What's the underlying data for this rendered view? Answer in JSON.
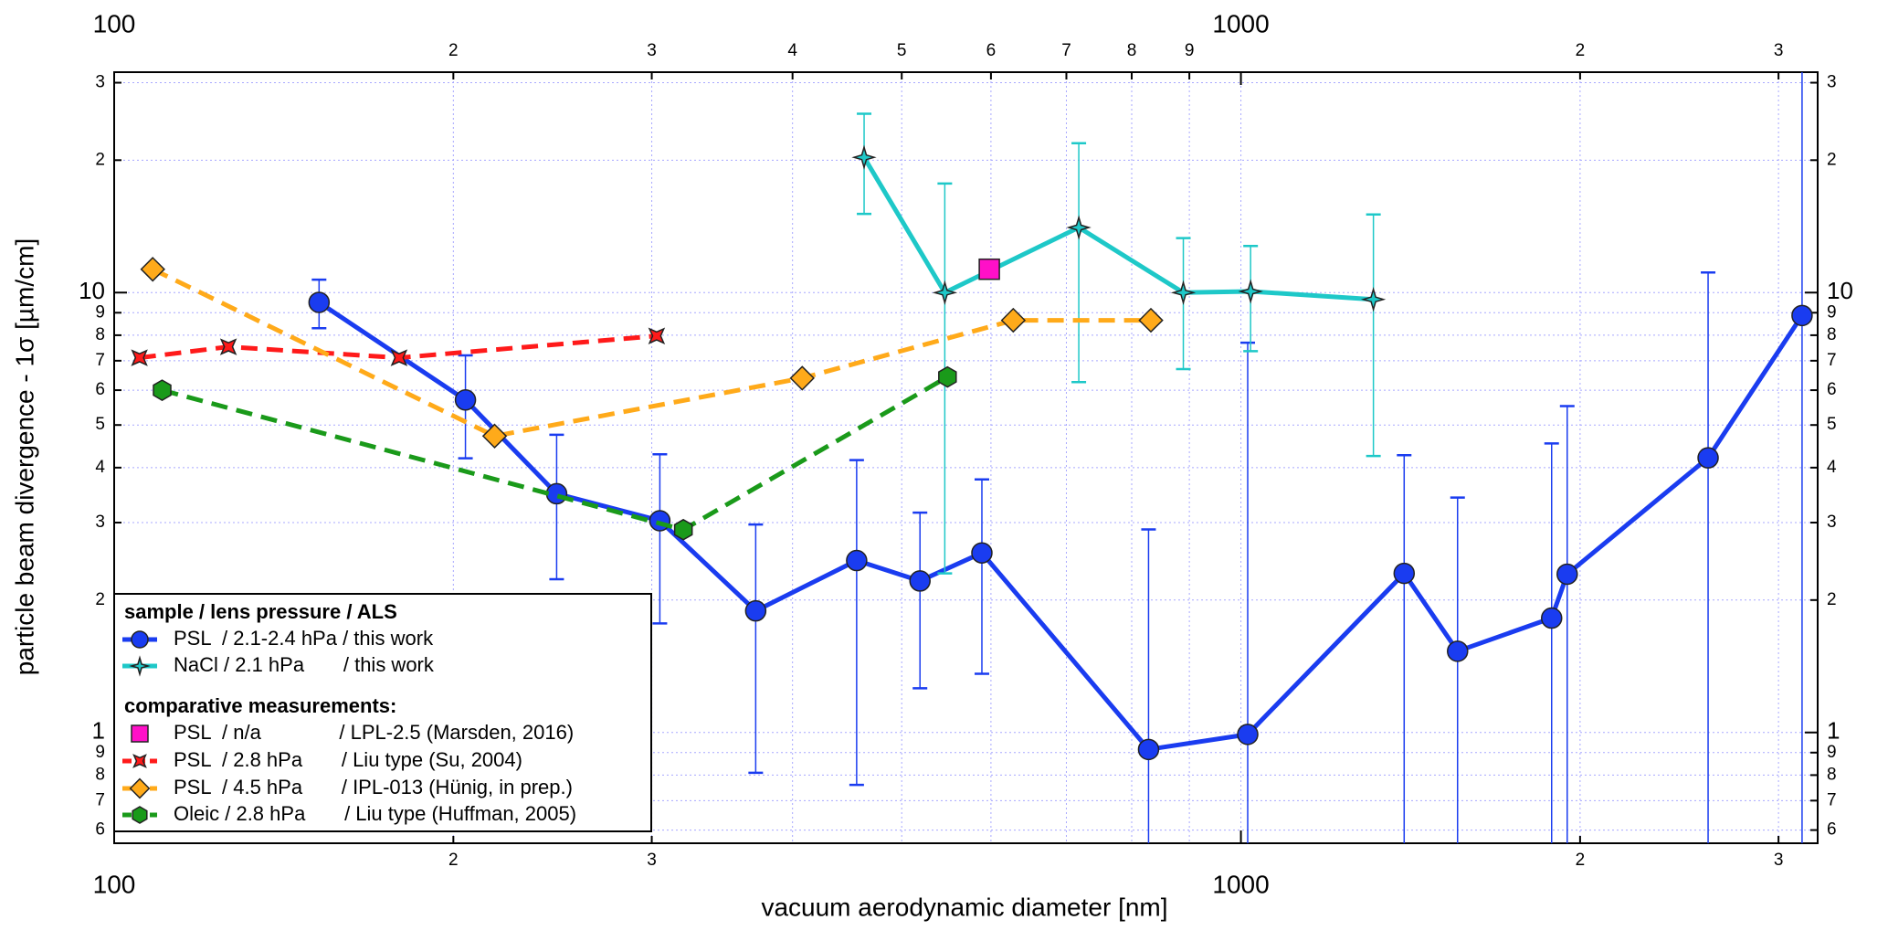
{
  "chart_data": {
    "type": "scatter",
    "xlabel": "vacuum aerodynamic diameter [nm]",
    "ylabel": "particle beam divergence - 1σ [µm/cm]",
    "xscale": "log",
    "yscale": "log",
    "xlim": [
      100,
      3250
    ],
    "ylim": [
      0.56,
      31.7
    ],
    "xticks": [
      100,
      {
        "value": 200,
        "label": "2"
      },
      {
        "value": 300,
        "label": "3"
      },
      1000,
      {
        "value": 2000,
        "label": "2"
      },
      {
        "value": 3000,
        "label": "3"
      }
    ],
    "xticks_top": [
      100,
      {
        "value": 200,
        "label": "2"
      },
      {
        "value": 300,
        "label": "3"
      },
      {
        "value": 400,
        "label": "4"
      },
      {
        "value": 500,
        "label": "5"
      },
      {
        "value": 600,
        "label": "6"
      },
      {
        "value": 700,
        "label": "7"
      },
      {
        "value": 800,
        "label": "8"
      },
      {
        "value": 900,
        "label": "9"
      },
      1000,
      {
        "value": 2000,
        "label": "2"
      },
      {
        "value": 3000,
        "label": "3"
      }
    ],
    "yticks": [
      {
        "value": 0.6,
        "label": "6"
      },
      {
        "value": 0.7,
        "label": "7"
      },
      {
        "value": 0.8,
        "label": "8"
      },
      {
        "value": 0.9,
        "label": "9"
      },
      1,
      2,
      3,
      4,
      5,
      6,
      7,
      8,
      9,
      10,
      {
        "value": 20,
        "label": "2"
      },
      {
        "value": 30,
        "label": "3"
      }
    ],
    "grid": true,
    "legend": {
      "title": "sample / lens pressure / ALS",
      "subtitle": "comparative measurements:"
    },
    "series": [
      {
        "name": "PSL  / 2.1-2.4 hPa / this work",
        "color": "#1a3cf0",
        "marker": "circle",
        "dash": "solid",
        "x": [
          152,
          205,
          247,
          305,
          371,
          456,
          519,
          589,
          828,
          1014,
          1396,
          1557,
          1887,
          1948,
          2598,
          3148
        ],
        "values": [
          9.5,
          5.7,
          3.49,
          3.03,
          1.89,
          2.46,
          2.21,
          2.56,
          0.915,
          0.99,
          2.3,
          1.53,
          1.82,
          2.29,
          4.21,
          8.87
        ],
        "errors": [
          1.2,
          1.5,
          1.26,
          1.26,
          1.08,
          1.7,
          0.95,
          1.2,
          1.98,
          6.7,
          1.97,
          1.89,
          2.72,
          3.23,
          6.9,
          25
        ]
      },
      {
        "name": "NaCl / 2.1 hPa       / this work",
        "color": "#1ec8c8",
        "marker": "star",
        "dash": "solid",
        "x": [
          463,
          546,
          718,
          889,
          1020,
          1311
        ],
        "values": [
          20.3,
          10.0,
          14.06,
          10.0,
          10.06,
          9.65
        ],
        "errors": [
          5.2,
          7.7,
          7.8,
          3.3,
          2.7,
          5.4
        ]
      },
      {
        "name": "PSL  / n/a              / LPL-2.5 (Marsden, 2016)",
        "color": "#ff10c8",
        "marker": "square",
        "dash": "none",
        "x": [
          598
        ],
        "values": [
          11.3
        ]
      },
      {
        "name": "PSL  / 2.8 hPa       / Liu type (Su, 2004)",
        "color": "#ff1a1a",
        "marker": "cross",
        "dash": "dashed",
        "x": [
          105.3,
          126.3,
          179,
          303
        ],
        "values": [
          7.11,
          7.53,
          7.11,
          7.97
        ]
      },
      {
        "name": "PSL  / 4.5 hPa       / IPL-013 (Hünig, in prep.)",
        "color": "#ffaa1a",
        "marker": "diamond",
        "dash": "dashed",
        "x": [
          108.2,
          217.6,
          408,
          628,
          832
        ],
        "values": [
          11.3,
          4.72,
          6.39,
          8.65,
          8.65
        ]
      },
      {
        "name": "Oleic / 2.8 hPa       / Liu type (Huffman, 2005)",
        "color": "#1a9a1a",
        "marker": "hexagon",
        "dash": "dashed",
        "x": [
          110.3,
          320,
          549
        ],
        "values": [
          6.0,
          2.89,
          6.43
        ]
      }
    ]
  }
}
